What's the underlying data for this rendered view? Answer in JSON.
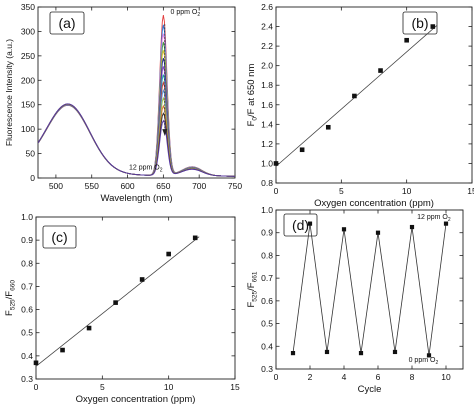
{
  "chart_data": [
    {
      "id": "a",
      "type": "line",
      "panel_label": "(a)",
      "xlabel": "Wavelength (nm)",
      "ylabel": "Fluorescence Intensity (a.u.)",
      "xlim": [
        475,
        750
      ],
      "ylim": [
        0,
        350
      ],
      "xticks": [
        500,
        550,
        600,
        650,
        700,
        750
      ],
      "yticks": [
        0,
        50,
        100,
        150,
        200,
        250,
        300,
        350
      ],
      "grid": false,
      "annotations": [
        {
          "text": "0 ppm O",
          "sub": "2",
          "x": 660,
          "y": 336
        },
        {
          "text": "12 ppm O",
          "sub": "2",
          "x": 602,
          "y": 17
        }
      ],
      "peak_wavelength": 650,
      "peak_values": [
        338,
        318,
        300,
        283,
        266,
        250,
        233,
        216,
        200,
        184,
        168,
        152,
        137,
        122
      ],
      "colors": [
        "#e23b3b",
        "#2b7de0",
        "#ef8be8",
        "#3ea542",
        "#e8c23a",
        "#1f2a9a",
        "#8d46c4",
        "#16a6a6",
        "#c23939",
        "#4f8fd8",
        "#9fbf3f",
        "#d36f2b",
        "#2e2e2e",
        "#5a3aa8"
      ]
    },
    {
      "id": "b",
      "type": "scatter",
      "panel_label": "(b)",
      "xlabel": "Oxygen concentration (ppm)",
      "ylabel_main": "F",
      "ylabel_sub": "0",
      "ylabel_rest": "/F at 650 nm",
      "xlim": [
        0,
        15
      ],
      "ylim": [
        0.8,
        2.6
      ],
      "xticks": [
        0,
        5,
        10,
        15
      ],
      "yticks": [
        0.8,
        1.0,
        1.2,
        1.4,
        1.6,
        1.8,
        2.0,
        2.2,
        2.4,
        2.6
      ],
      "x": [
        0,
        2,
        4,
        6,
        8,
        10,
        12
      ],
      "y": [
        1.0,
        1.14,
        1.37,
        1.69,
        1.95,
        2.26,
        2.4
      ],
      "fit": {
        "x": [
          0,
          12.3
        ],
        "y": [
          0.97,
          2.41
        ]
      },
      "grid": false
    },
    {
      "id": "c",
      "type": "scatter",
      "panel_label": "(c)",
      "xlabel": "Oxygen concentration (ppm)",
      "ylabel_main": "F",
      "ylabel_sub": "525",
      "ylabel_rest": "/F",
      "ylabel_sub2": "660",
      "xlim": [
        0,
        15
      ],
      "ylim": [
        0.3,
        1.0
      ],
      "xticks": [
        0,
        5,
        10,
        15
      ],
      "yticks": [
        0.3,
        0.4,
        0.5,
        0.6,
        0.7,
        0.8,
        0.9,
        1.0
      ],
      "x": [
        0,
        2,
        4,
        6,
        8,
        10,
        12
      ],
      "y": [
        0.37,
        0.425,
        0.52,
        0.63,
        0.73,
        0.84,
        0.91
      ],
      "fit": {
        "x": [
          0,
          12.3
        ],
        "y": [
          0.355,
          0.915
        ]
      },
      "grid": false
    },
    {
      "id": "d",
      "type": "line",
      "panel_label": "(d)",
      "xlabel": "Cycle",
      "ylabel_main": "F",
      "ylabel_sub": "525",
      "ylabel_rest": "/F",
      "ylabel_sub2": "661",
      "xlim": [
        0,
        11
      ],
      "ylim": [
        0.3,
        1.0
      ],
      "xticks": [
        0,
        2,
        4,
        6,
        8,
        10
      ],
      "yticks": [
        0.3,
        0.4,
        0.5,
        0.6,
        0.7,
        0.8,
        0.9,
        1.0
      ],
      "x": [
        1,
        2,
        3,
        4,
        5,
        6,
        7,
        8,
        9,
        10
      ],
      "y": [
        0.37,
        0.94,
        0.375,
        0.915,
        0.37,
        0.9,
        0.375,
        0.925,
        0.36,
        0.94
      ],
      "annotations": [
        {
          "text": "12 ppm O",
          "sub": "2",
          "x": 8.3,
          "y": 0.96
        },
        {
          "text": "0 ppm O",
          "sub": "2",
          "x": 7.8,
          "y": 0.33
        }
      ],
      "grid": false
    }
  ]
}
